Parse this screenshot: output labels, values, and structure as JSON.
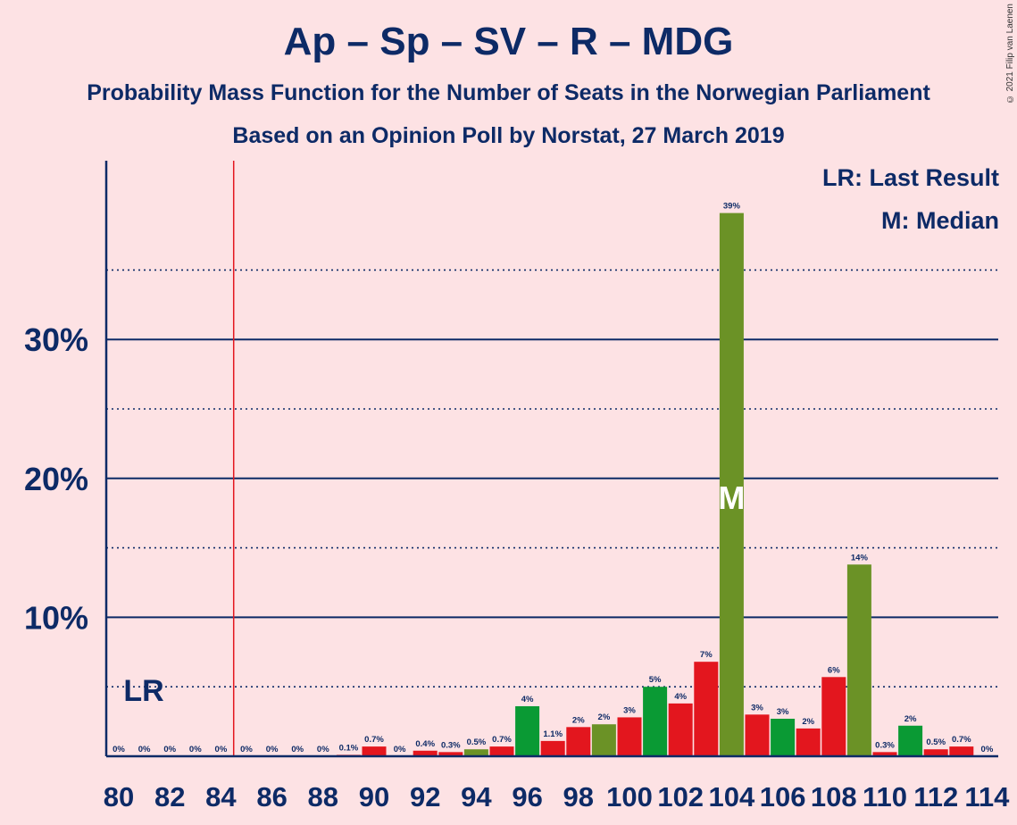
{
  "title": "Ap – Sp – SV – R – MDG",
  "subtitle1": "Probability Mass Function for the Number of Seats in the Norwegian Parliament",
  "subtitle2": "Based on an Opinion Poll by Norstat, 27 March 2019",
  "copyright": "© 2021 Filip van Laenen",
  "legend": {
    "last_result": "LR: Last Result",
    "median": "M: Median"
  },
  "colors": {
    "red": "#e3161e",
    "green": "#0a9a34",
    "olive": "#6b9226",
    "axis": "#0d2a66",
    "lr_line": "#e3161e",
    "background": "#fde2e4"
  },
  "chart_data": {
    "type": "bar",
    "x": [
      80,
      81,
      82,
      83,
      84,
      85,
      86,
      87,
      88,
      89,
      90,
      91,
      92,
      93,
      94,
      95,
      96,
      97,
      98,
      99,
      100,
      101,
      102,
      103,
      104,
      105,
      106,
      107,
      108,
      109,
      110,
      111,
      112,
      113,
      114
    ],
    "values": [
      0,
      0,
      0,
      0,
      0,
      0,
      0,
      0,
      0,
      0.1,
      0.7,
      0,
      0.4,
      0.3,
      0.5,
      0.7,
      3.6,
      1.1,
      2.1,
      2.3,
      2.8,
      5.0,
      3.8,
      6.8,
      39.1,
      3.0,
      2.7,
      2.0,
      5.7,
      13.8,
      0.3,
      2.2,
      0.5,
      0.7,
      0
    ],
    "labels": [
      "0%",
      "0%",
      "0%",
      "0%",
      "0%",
      "0%",
      "0%",
      "0%",
      "0%",
      "0.1%",
      "0.7%",
      "0%",
      "0.4%",
      "0.3%",
      "0.5%",
      "0.7%",
      "4%",
      "1.1%",
      "2%",
      "2%",
      "3%",
      "5%",
      "4%",
      "7%",
      "39%",
      "3%",
      "3%",
      "2%",
      "6%",
      "14%",
      "0.3%",
      "2%",
      "0.5%",
      "0.7%",
      "0%"
    ],
    "bar_colors": [
      "red",
      "red",
      "red",
      "red",
      "red",
      "red",
      "red",
      "red",
      "red",
      "red",
      "red",
      "red",
      "red",
      "red",
      "olive",
      "red",
      "green",
      "red",
      "red",
      "olive",
      "red",
      "green",
      "red",
      "red",
      "olive",
      "red",
      "green",
      "red",
      "red",
      "olive",
      "red",
      "green",
      "red",
      "red",
      "red"
    ],
    "x_ticks": [
      80,
      82,
      84,
      86,
      88,
      90,
      92,
      94,
      96,
      98,
      100,
      102,
      104,
      106,
      108,
      110,
      112,
      114
    ],
    "y_ticks_major": [
      10,
      20,
      30
    ],
    "y_tick_labels": [
      "10%",
      "20%",
      "30%"
    ],
    "y_ticks_minor": [
      5,
      15,
      25,
      35
    ],
    "ylim": [
      0,
      42.6
    ],
    "last_result": 85,
    "last_result_label": "LR",
    "median": 104,
    "median_label": "M"
  }
}
